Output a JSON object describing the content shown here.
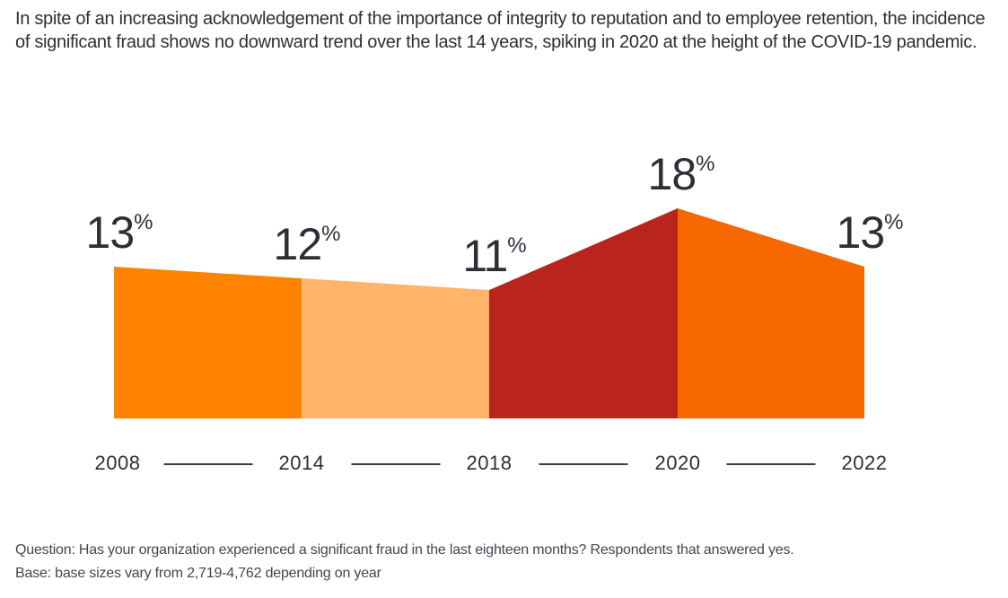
{
  "header": {
    "paragraph": "In spite of an increasing acknowledgement of the importance of integrity to reputation and to employee retention, the incidence of significant fraud shows no downward trend over the last 14 years, spiking in 2020 at the height of the COVID-19 pandemic."
  },
  "chart_data": {
    "type": "area",
    "categories": [
      "2008",
      "2014",
      "2018",
      "2020",
      "2022"
    ],
    "values": [
      13,
      12,
      11,
      18,
      13
    ],
    "value_labels": [
      "13",
      "12",
      "11",
      "18",
      "13"
    ],
    "unit": "%",
    "segment_colors": [
      "#FF8200",
      "#FFB46A",
      "#B9251C",
      "#F76900"
    ],
    "label_color": "#2E2E38",
    "axis_dash_color": "#3A3A45",
    "ylim": [
      0,
      20
    ],
    "grid": false,
    "legend": "none",
    "title": "",
    "xlabel": "",
    "ylabel": ""
  },
  "footnotes": {
    "question": "Question: Has your organization experienced a significant fraud in the last eighteen months? Respondents that answered yes.",
    "base": "Base: base sizes vary from 2,719-4,762 depending on year"
  }
}
